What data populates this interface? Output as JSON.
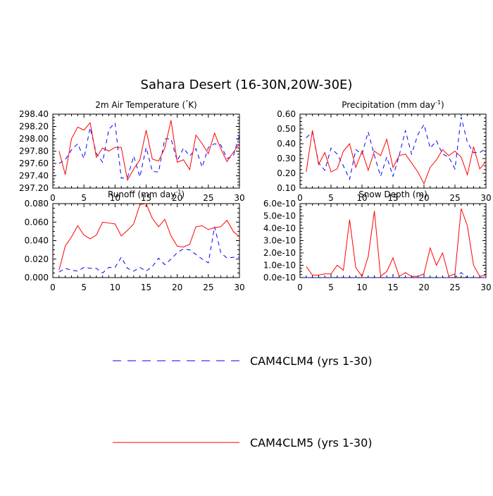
{
  "title": "Sahara Desert (16-30N,20W-30E)",
  "legend": {
    "items": [
      {
        "label": "CAM4CLM4 (yrs 1-30)",
        "color": "#0000ff",
        "dash": "dashed"
      },
      {
        "label": "CAM4CLM5 (yrs 1-30)",
        "color": "#ff0000",
        "dash": "solid"
      }
    ]
  },
  "chart_data": [
    {
      "type": "line",
      "title": "2m Air Temperature",
      "title_unit": "(°K)",
      "xlabel": "",
      "ylabel": "",
      "xlim": [
        0,
        30
      ],
      "ylim": [
        297.2,
        298.4
      ],
      "x_ticks": [
        0,
        5,
        10,
        15,
        20,
        25,
        30
      ],
      "y_ticks": [
        297.2,
        297.4,
        297.6,
        297.8,
        298.0,
        298.2,
        298.4
      ],
      "y_tick_labels": [
        "297.20",
        "297.40",
        "297.60",
        "297.80",
        "298.00",
        "298.20",
        "298.40"
      ],
      "x": [
        1,
        2,
        3,
        4,
        5,
        6,
        7,
        8,
        9,
        10,
        11,
        12,
        13,
        14,
        15,
        16,
        17,
        18,
        19,
        20,
        21,
        22,
        23,
        24,
        25,
        26,
        27,
        28,
        29,
        30
      ],
      "series": [
        {
          "name": "CAM4CLM4 (yrs 1-30)",
          "values": [
            297.6,
            297.66,
            297.82,
            297.92,
            297.68,
            298.18,
            297.76,
            297.62,
            298.15,
            298.26,
            297.36,
            297.37,
            297.72,
            297.38,
            297.86,
            297.47,
            297.46,
            298.0,
            298.0,
            297.64,
            297.85,
            297.72,
            297.84,
            297.54,
            297.86,
            297.92,
            297.9,
            297.68,
            297.72,
            298.06
          ]
        },
        {
          "name": "CAM4CLM5 (yrs 1-30)",
          "values": [
            297.8,
            297.42,
            298.0,
            298.19,
            298.14,
            298.26,
            297.7,
            297.85,
            297.8,
            297.86,
            297.86,
            297.33,
            297.51,
            297.66,
            298.14,
            297.67,
            297.64,
            297.85,
            298.3,
            297.62,
            297.66,
            297.5,
            298.06,
            297.92,
            297.76,
            298.09,
            297.84,
            297.63,
            297.78,
            297.92
          ]
        }
      ]
    },
    {
      "type": "line",
      "title": "Precipitation (mm day",
      "title_sup": "-1",
      "title_tail": ")",
      "xlabel": "",
      "ylabel": "",
      "xlim": [
        0,
        30
      ],
      "ylim": [
        0.1,
        0.6
      ],
      "x_ticks": [
        0,
        5,
        10,
        15,
        20,
        25,
        30
      ],
      "y_ticks": [
        0.1,
        0.2,
        0.3,
        0.4,
        0.5,
        0.6
      ],
      "y_tick_labels": [
        "0.10",
        "0.20",
        "0.30",
        "0.40",
        "0.50",
        "0.60"
      ],
      "x": [
        1,
        2,
        3,
        4,
        5,
        6,
        7,
        8,
        9,
        10,
        11,
        12,
        13,
        14,
        15,
        16,
        17,
        18,
        19,
        20,
        21,
        22,
        23,
        24,
        25,
        26,
        27,
        28,
        29,
        30
      ],
      "series": [
        {
          "name": "CAM4CLM4 (yrs 1-30)",
          "values": [
            0.44,
            0.48,
            0.27,
            0.22,
            0.37,
            0.33,
            0.25,
            0.16,
            0.36,
            0.33,
            0.48,
            0.32,
            0.18,
            0.31,
            0.18,
            0.32,
            0.49,
            0.33,
            0.46,
            0.53,
            0.37,
            0.42,
            0.33,
            0.31,
            0.23,
            0.58,
            0.41,
            0.34,
            0.34,
            0.37
          ]
        },
        {
          "name": "CAM4CLM5 (yrs 1-30)",
          "values": [
            0.21,
            0.49,
            0.26,
            0.34,
            0.21,
            0.23,
            0.35,
            0.4,
            0.24,
            0.35,
            0.22,
            0.35,
            0.32,
            0.43,
            0.24,
            0.32,
            0.33,
            0.27,
            0.21,
            0.13,
            0.24,
            0.29,
            0.36,
            0.32,
            0.35,
            0.31,
            0.19,
            0.38,
            0.23,
            0.28
          ]
        }
      ]
    },
    {
      "type": "line",
      "title": "Runoff (mm day",
      "title_sup": "-1",
      "title_tail": ")",
      "xlabel": "",
      "ylabel": "",
      "xlim": [
        0,
        30
      ],
      "ylim": [
        0.0,
        0.08
      ],
      "x_ticks": [
        0,
        5,
        10,
        15,
        20,
        25,
        30
      ],
      "y_ticks": [
        0.0,
        0.02,
        0.04,
        0.06,
        0.08
      ],
      "y_tick_labels": [
        "0.000",
        "0.020",
        "0.040",
        "0.060",
        "0.080"
      ],
      "x": [
        1,
        2,
        3,
        4,
        5,
        6,
        7,
        8,
        9,
        10,
        11,
        12,
        13,
        14,
        15,
        16,
        17,
        18,
        19,
        20,
        21,
        22,
        23,
        24,
        25,
        26,
        27,
        28,
        29,
        30
      ],
      "series": [
        {
          "name": "CAM4CLM4 (yrs 1-30)",
          "values": [
            0.006,
            0.01,
            0.008,
            0.007,
            0.011,
            0.01,
            0.01,
            0.005,
            0.011,
            0.011,
            0.022,
            0.01,
            0.007,
            0.011,
            0.007,
            0.012,
            0.021,
            0.014,
            0.02,
            0.027,
            0.031,
            0.03,
            0.025,
            0.02,
            0.016,
            0.055,
            0.027,
            0.021,
            0.022,
            0.022
          ]
        },
        {
          "name": "CAM4CLM5 (yrs 1-30)",
          "values": [
            0.008,
            0.034,
            0.044,
            0.056,
            0.046,
            0.042,
            0.046,
            0.06,
            0.059,
            0.058,
            0.045,
            0.051,
            0.058,
            0.079,
            0.08,
            0.064,
            0.055,
            0.063,
            0.045,
            0.034,
            0.033,
            0.036,
            0.055,
            0.056,
            0.052,
            0.054,
            0.055,
            0.062,
            0.05,
            0.044
          ]
        }
      ]
    },
    {
      "type": "line",
      "title": "Snow Depth (m)",
      "xlabel": "",
      "ylabel": "",
      "xlim": [
        0,
        30
      ],
      "ylim": [
        0,
        6e-10
      ],
      "x_ticks": [
        0,
        5,
        10,
        15,
        20,
        25,
        30
      ],
      "y_ticks": [
        0,
        1e-10,
        2e-10,
        3e-10,
        4e-10,
        5e-10,
        6e-10
      ],
      "y_tick_labels": [
        "0.0e-10",
        "1.0e-10",
        "2.0e-10",
        "3.0e-10",
        "4.0e-10",
        "5.0e-10",
        "6.0e-10"
      ],
      "x": [
        1,
        2,
        3,
        4,
        5,
        6,
        7,
        8,
        9,
        10,
        11,
        12,
        13,
        14,
        15,
        16,
        17,
        18,
        19,
        20,
        21,
        22,
        23,
        24,
        25,
        26,
        27,
        28,
        29,
        30
      ],
      "series": [
        {
          "name": "CAM4CLM4 (yrs 1-30)",
          "values": [
            0,
            0,
            0,
            0,
            0,
            0,
            0,
            0,
            0,
            0,
            0,
            0,
            0,
            0,
            0,
            0,
            0,
            0,
            0,
            0,
            0,
            0,
            0,
            0,
            0,
            4e-11,
            0,
            0,
            0,
            0
          ]
        },
        {
          "name": "CAM4CLM5 (yrs 1-30)",
          "values": [
            9e-11,
            2e-11,
            2e-11,
            3e-11,
            3e-11,
            1e-10,
            6e-11,
            4.7e-10,
            8e-11,
            1e-11,
            1.7e-10,
            5.4e-10,
            1e-11,
            5e-11,
            1.6e-10,
            1e-11,
            4e-11,
            1e-11,
            1e-11,
            3e-11,
            2.4e-10,
            1e-10,
            2e-10,
            1e-11,
            3e-11,
            5.6e-10,
            4.2e-10,
            1e-10,
            1e-11,
            2e-11
          ]
        }
      ]
    }
  ]
}
